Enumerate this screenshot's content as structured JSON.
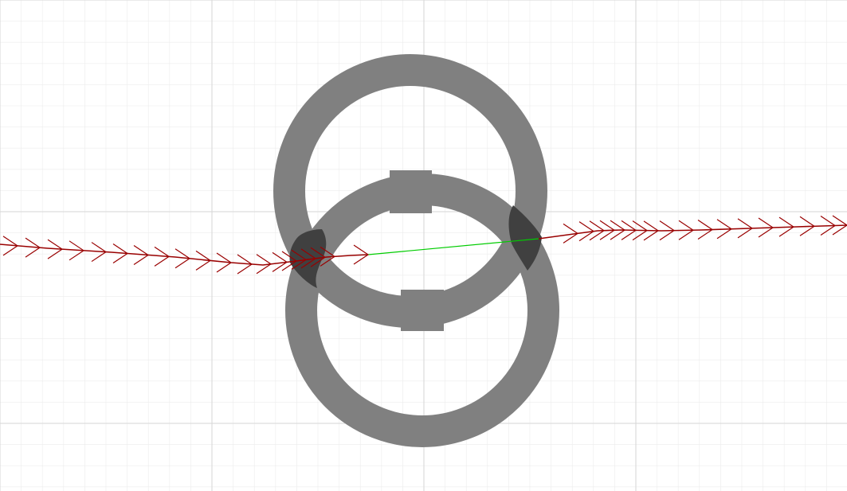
{
  "scene": {
    "background_color": "#ffffff",
    "grid_minor_color": "#ececec",
    "grid_major_color": "#d6d6d6",
    "ring_color": "#808080",
    "ring_overlap_color": "#404040",
    "trajectory_color": "#990000",
    "connector_color": "#00cc00"
  },
  "rings": [
    {
      "name": "upper-ring"
    },
    {
      "name": "lower-ring"
    }
  ],
  "trajectories": [
    {
      "name": "left-trajectory"
    },
    {
      "name": "right-trajectory"
    }
  ],
  "connector": {
    "name": "bridge-segment"
  }
}
